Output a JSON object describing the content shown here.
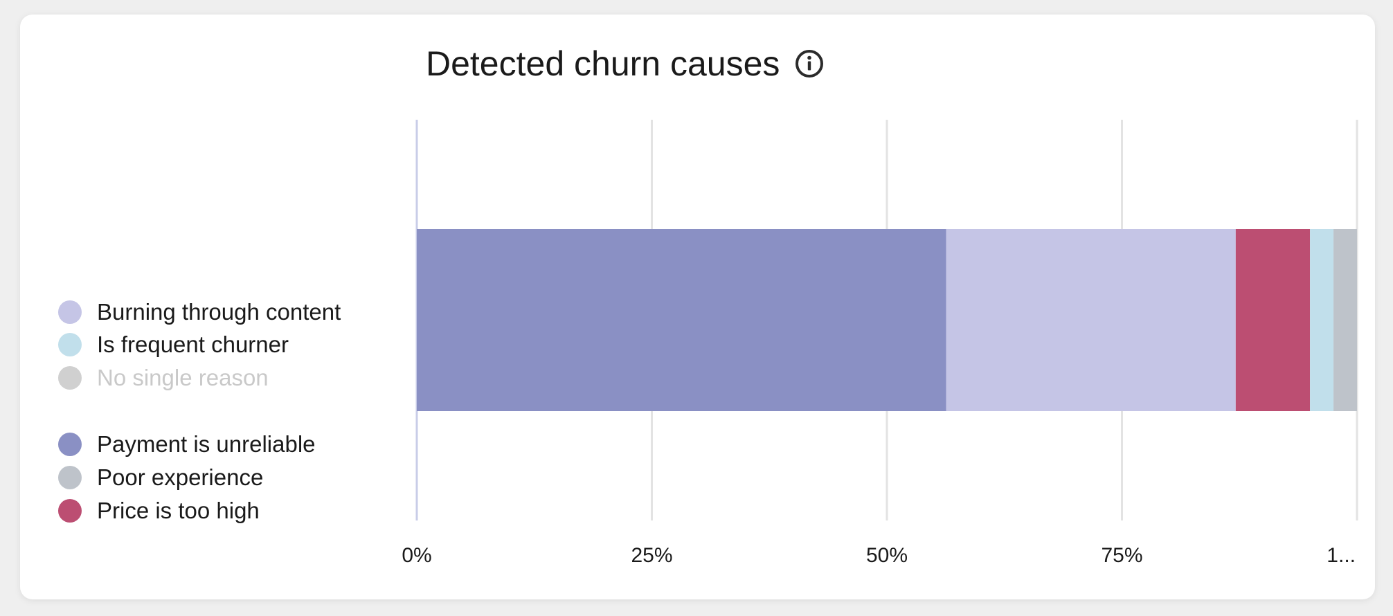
{
  "title": "Detected churn causes",
  "info_icon": "info-icon",
  "legend": {
    "groups": [
      [
        {
          "name": "Burning through content",
          "color": "#c5c5e6",
          "disabled": false
        },
        {
          "name": "Is frequent churner",
          "color": "#c1dfeb",
          "disabled": false
        },
        {
          "name": "No single reason",
          "color": "#d0d0d0",
          "disabled": true
        }
      ],
      [
        {
          "name": "Payment is unreliable",
          "color": "#8a90c4",
          "disabled": false
        },
        {
          "name": "Poor experience",
          "color": "#bec3ca",
          "disabled": false
        },
        {
          "name": "Price is too high",
          "color": "#bc4e72",
          "disabled": false
        }
      ]
    ]
  },
  "chart_data": {
    "type": "bar",
    "orientation": "horizontal",
    "stacked": true,
    "title": "Detected churn causes",
    "xlim": [
      0,
      100
    ],
    "x_ticks": [
      "0%",
      "25%",
      "50%",
      "75%",
      "1..."
    ],
    "x_tick_values": [
      0,
      25,
      50,
      75,
      100
    ],
    "grid": true,
    "legend_position": "left",
    "series": [
      {
        "name": "Payment is unreliable",
        "value": 56.3,
        "color": "#8a90c4"
      },
      {
        "name": "Burning through content",
        "value": 30.8,
        "color": "#c5c5e6"
      },
      {
        "name": "Price is too high",
        "value": 7.9,
        "color": "#bc4e72"
      },
      {
        "name": "Is frequent churner",
        "value": 2.5,
        "color": "#c1dfeb"
      },
      {
        "name": "Poor experience",
        "value": 2.5,
        "color": "#bec3ca"
      }
    ]
  }
}
